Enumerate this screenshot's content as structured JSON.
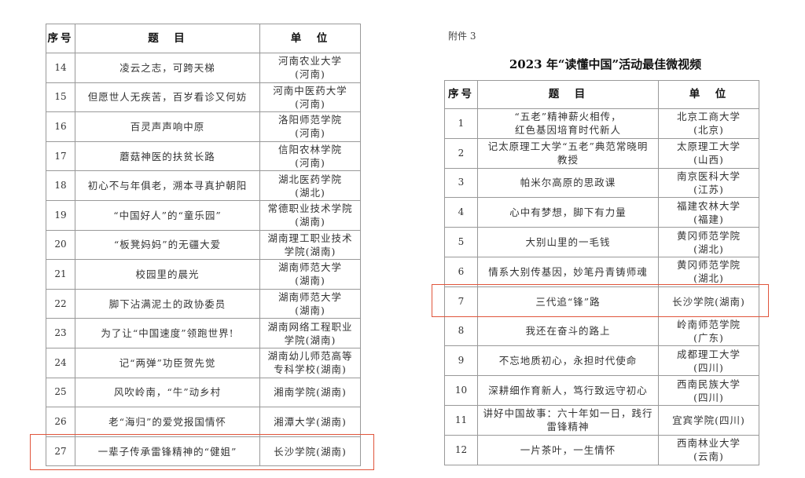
{
  "headers": {
    "index": "序号",
    "title": "题　目",
    "unit": "单　位"
  },
  "left_table": {
    "rows": [
      {
        "no": "14",
        "title": "凌云之志，可跨天梯",
        "unit": "河南农业大学\n(河南)"
      },
      {
        "no": "15",
        "title": "但愿世人无疾苦，百岁看诊又何妨",
        "unit": "河南中医药大学\n(河南)"
      },
      {
        "no": "16",
        "title": "百灵声声响中原",
        "unit": "洛阳师范学院\n(河南)"
      },
      {
        "no": "17",
        "title": "蘑菇神医的扶贫长路",
        "unit": "信阳农林学院\n(河南)"
      },
      {
        "no": "18",
        "title": "初心不与年俱老，溯本寻真护朝阳",
        "unit": "湖北医药学院\n(湖北)"
      },
      {
        "no": "19",
        "title": "“中国好人”的“童乐园”",
        "unit": "常德职业技术学院\n(湖南)"
      },
      {
        "no": "20",
        "title": "“板凳妈妈”的无疆大爱",
        "unit": "湖南理工职业技术\n学院(湖南)"
      },
      {
        "no": "21",
        "title": "校园里的晨光",
        "unit": "湖南师范大学\n(湖南)"
      },
      {
        "no": "22",
        "title": "脚下沾满泥土的政协委员",
        "unit": "湖南师范大学\n(湖南)"
      },
      {
        "no": "23",
        "title": "为了让“中国速度”领跑世界!",
        "unit": "湖南网络工程职业\n学院(湖南)"
      },
      {
        "no": "24",
        "title": "记“两弹”功臣贺先觉",
        "unit": "湖南幼儿师范高等\n专科学校(湖南)"
      },
      {
        "no": "25",
        "title": "风吹岭南，“牛”动乡村",
        "unit": "湘南学院(湖南)"
      },
      {
        "no": "26",
        "title": "老“海归”的爱党报国情怀",
        "unit": "湘潭大学(湖南)"
      },
      {
        "no": "27",
        "title": "一辈子传承雷锋精神的“健姐”",
        "unit": "长沙学院(湖南)",
        "highlighted": true
      }
    ]
  },
  "right_page": {
    "attachment": "附件 3",
    "title": "2023 年“读懂中国”活动最佳微视频",
    "rows": [
      {
        "no": "1",
        "title": "“五老”精神薪火相传，\n红色基因培育时代新人",
        "unit": "北京工商大学\n(北京)"
      },
      {
        "no": "2",
        "title": "记太原理工大学“五老”典范常晓明\n教授",
        "unit": "太原理工大学\n(山西)"
      },
      {
        "no": "3",
        "title": "帕米尔高原的思政课",
        "unit": "南京医科大学\n(江苏)"
      },
      {
        "no": "4",
        "title": "心中有梦想，脚下有力量",
        "unit": "福建农林大学\n(福建)"
      },
      {
        "no": "5",
        "title": "大别山里的一毛钱",
        "unit": "黄冈师范学院\n(湖北)"
      },
      {
        "no": "6",
        "title": "情系大别传基因，妙笔丹青铸师魂",
        "unit": "黄冈师范学院\n(湖北)"
      },
      {
        "no": "7",
        "title": "三代追“锋”路",
        "unit": "长沙学院(湖南)",
        "highlighted": true
      },
      {
        "no": "8",
        "title": "我还在奋斗的路上",
        "unit": "岭南师范学院\n(广东)"
      },
      {
        "no": "9",
        "title": "不忘地质初心，永担时代使命",
        "unit": "成都理工大学\n(四川)"
      },
      {
        "no": "10",
        "title": "深耕细作育新人，笃行致远守初心",
        "unit": "西南民族大学\n(四川)"
      },
      {
        "no": "11",
        "title": "讲好中国故事：六十年如一日，践行\n雷锋精神",
        "unit": "宜宾学院(四川)"
      },
      {
        "no": "12",
        "title": "一片茶叶，一生情怀",
        "unit": "西南林业大学\n(云南)"
      }
    ]
  },
  "colors": {
    "highlight_border": "#e0553c",
    "grid": "#999999"
  }
}
